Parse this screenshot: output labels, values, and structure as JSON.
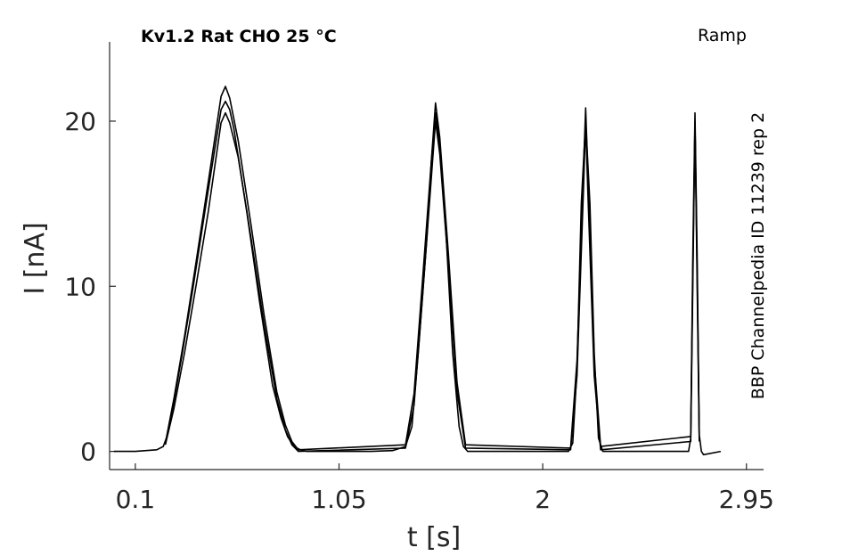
{
  "chart_data": {
    "type": "line",
    "title": "Kv1.2  Rat  CHO  25 °C",
    "protocol_label": "Ramp",
    "side_annotation": "BBP Channelpedia ID 11239 rep 2",
    "xlabel": "t [s]",
    "ylabel": "I [nA]",
    "xlim": [
      -0.02,
      3.03
    ],
    "ylim": [
      -1.1,
      24.8
    ],
    "xticks": [
      0.1,
      1.05,
      2,
      2.95
    ],
    "xtick_labels": [
      "0.1",
      "1.05",
      "2",
      "2.95"
    ],
    "yticks": [
      0,
      10,
      20
    ],
    "ytick_labels": [
      "0",
      "10",
      "20"
    ],
    "grid": false,
    "line_color": "#000000",
    "series": [
      {
        "x": [
          0.0,
          0.1,
          0.2,
          0.23,
          0.25,
          0.28,
          0.32,
          0.37,
          0.43,
          0.5,
          0.52,
          0.54,
          0.56,
          0.62,
          0.68,
          0.74,
          0.78,
          0.81,
          0.84,
          0.87,
          0.9,
          0.95,
          1.0,
          1.2,
          1.3,
          1.36,
          1.39,
          1.42,
          1.46,
          1.48,
          1.5,
          1.52,
          1.55,
          1.58,
          1.61,
          1.63,
          1.65,
          1.8,
          1.9,
          2.12,
          2.14,
          2.16,
          2.18,
          2.2,
          2.22,
          2.24,
          2.26,
          2.28,
          2.4,
          2.5,
          2.68,
          2.69,
          2.7,
          2.71,
          2.72,
          2.73,
          2.74,
          2.75,
          2.83
        ],
        "values": [
          0.0,
          0.0,
          0.1,
          0.3,
          1.0,
          3.0,
          6.0,
          10.0,
          15.0,
          20.7,
          21.2,
          20.7,
          19.5,
          14.5,
          9.0,
          4.0,
          2.0,
          0.9,
          0.3,
          0.1,
          0.0,
          0.0,
          0.0,
          0.0,
          0.05,
          0.3,
          1.5,
          6.0,
          13.0,
          17.5,
          20.5,
          18.5,
          13.0,
          6.0,
          1.5,
          0.3,
          0.0,
          0.0,
          0.0,
          0.0,
          0.5,
          5.0,
          15.0,
          20.0,
          15.0,
          6.0,
          0.8,
          0.0,
          0.0,
          0.0,
          0.0,
          0.8,
          11.0,
          20.0,
          11.0,
          1.0,
          0.0,
          -0.2,
          0.0
        ]
      },
      {
        "x": [
          0.24,
          0.28,
          0.33,
          0.38,
          0.44,
          0.5,
          0.52,
          0.54,
          0.58,
          0.64,
          0.7,
          0.76,
          0.8,
          0.83,
          0.86,
          1.36,
          1.4,
          1.44,
          1.48,
          1.5,
          1.52,
          1.56,
          1.6,
          1.64,
          2.13,
          2.16,
          2.19,
          2.2,
          2.21,
          2.24,
          2.27,
          2.69,
          2.7,
          2.71,
          2.72,
          2.73
        ],
        "values": [
          0.5,
          3.2,
          7.0,
          11.2,
          16.3,
          21.5,
          22.1,
          21.4,
          18.8,
          13.7,
          8.3,
          3.6,
          1.6,
          0.6,
          0.1,
          0.4,
          3.5,
          10.5,
          17.5,
          21.1,
          19.0,
          12.0,
          4.2,
          0.4,
          0.2,
          5.5,
          17.0,
          20.8,
          17.0,
          5.5,
          0.3,
          0.9,
          12.0,
          20.5,
          12.0,
          1.0
        ]
      },
      {
        "x": [
          0.24,
          0.28,
          0.33,
          0.38,
          0.44,
          0.5,
          0.52,
          0.54,
          0.58,
          0.64,
          0.7,
          0.76,
          0.8,
          0.83,
          0.86,
          1.36,
          1.4,
          1.44,
          1.48,
          1.5,
          1.52,
          1.56,
          1.6,
          1.64,
          2.13,
          2.16,
          2.19,
          2.2,
          2.21,
          2.24,
          2.27,
          2.69,
          2.7,
          2.71,
          2.72,
          2.73
        ],
        "values": [
          0.4,
          2.6,
          6.0,
          9.8,
          14.5,
          19.9,
          20.5,
          19.9,
          17.8,
          12.9,
          7.7,
          3.2,
          1.3,
          0.4,
          0.0,
          0.2,
          2.8,
          9.5,
          16.5,
          20.0,
          18.0,
          11.2,
          3.6,
          0.2,
          0.1,
          4.6,
          15.8,
          19.9,
          15.8,
          4.6,
          0.1,
          0.6,
          10.2,
          19.9,
          10.2,
          0.6
        ]
      }
    ]
  }
}
